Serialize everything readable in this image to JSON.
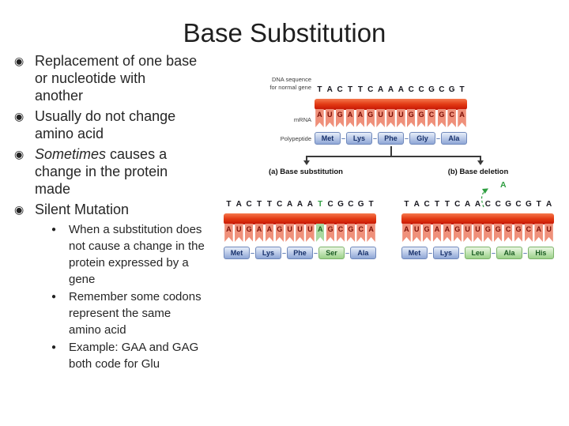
{
  "slide": {
    "title": "Base Substitution"
  },
  "bullet_glyph_level1": "◉",
  "bullet_glyph_level2": "●",
  "bullets": [
    {
      "level": 1,
      "lines": [
        "Replacement of one base",
        "or nucleotide with",
        "another"
      ]
    },
    {
      "level": 1,
      "lines": [
        "Usually do not change",
        "amino acid"
      ]
    },
    {
      "level": 1,
      "lines": [
        [
          {
            "t": "Sometimes",
            "i": true
          },
          {
            "t": " causes a",
            "i": false
          }
        ],
        "change in the protein",
        "made"
      ]
    },
    {
      "level": 1,
      "lines": [
        "Silent Mutation"
      ]
    },
    {
      "level": 2,
      "lines": [
        "When a substitution does",
        "not cause a change in the",
        "protein expressed by a",
        "gene"
      ]
    },
    {
      "level": 2,
      "lines": [
        "Remember some codons",
        "represent the same",
        "amino acid"
      ]
    },
    {
      "level": 2,
      "lines": [
        "Example: GAA and GAG",
        "both code for Glu"
      ]
    }
  ],
  "figure": {
    "connector": "–",
    "normal": {
      "label": [
        "DNA sequence",
        "for normal gene"
      ],
      "mrna_label": "mRNA",
      "polypeptide_label": "Polypeptide",
      "dna": [
        "T",
        "A",
        "C",
        "T",
        "T",
        "C",
        "A",
        "A",
        "A",
        "C",
        "C",
        "G",
        "C",
        "G",
        "T"
      ],
      "mrna": [
        "A",
        "U",
        "G",
        "A",
        "A",
        "G",
        "U",
        "U",
        "U",
        "G",
        "G",
        "C",
        "G",
        "C",
        "A"
      ],
      "polypeptide": [
        {
          "aa": "Met",
          "c": "blue"
        },
        {
          "aa": "Lys",
          "c": "blue"
        },
        {
          "aa": "Phe",
          "c": "blue"
        },
        {
          "aa": "Gly",
          "c": "blue"
        },
        {
          "aa": "Ala",
          "c": "blue"
        }
      ]
    },
    "branch": {
      "left_label": "(a) Base substitution",
      "right_label": "(b) Base deletion"
    },
    "substitution": {
      "dna": [
        "T",
        "A",
        "C",
        "T",
        "T",
        "C",
        "A",
        "A",
        "A",
        {
          "b": "T",
          "g": true
        },
        "C",
        "G",
        "C",
        "G",
        "T"
      ],
      "mrna": [
        "A",
        "U",
        "G",
        "A",
        "A",
        "G",
        "U",
        "U",
        "U",
        {
          "b": "A",
          "g": true
        },
        "G",
        "C",
        "G",
        "C",
        "A"
      ],
      "polypeptide": [
        {
          "aa": "Met",
          "c": "blue"
        },
        {
          "aa": "Lys",
          "c": "blue"
        },
        {
          "aa": "Phe",
          "c": "blue"
        },
        {
          "aa": "Ser",
          "c": "green"
        },
        {
          "aa": "Ala",
          "c": "blue"
        }
      ]
    },
    "deletion": {
      "deleted_base": "A",
      "dna": [
        "T",
        "A",
        "C",
        "T",
        "T",
        "C",
        "A",
        "A",
        "C",
        "C",
        "G",
        "C",
        "G",
        "T",
        "A"
      ],
      "mrna": [
        "A",
        "U",
        "G",
        "A",
        "A",
        "G",
        "U",
        "U",
        "G",
        "G",
        "C",
        "G",
        "C",
        "A",
        "U"
      ],
      "polypeptide": [
        {
          "aa": "Met",
          "c": "blue"
        },
        {
          "aa": "Lys",
          "c": "blue"
        },
        {
          "aa": "Leu",
          "c": "green"
        },
        {
          "aa": "Ala",
          "c": "green"
        },
        {
          "aa": "His",
          "c": "green"
        }
      ]
    }
  },
  "colors": {
    "bar_top": "#f5794d",
    "bar_mid": "#e23a14",
    "bar_bottom": "#c51504",
    "tooth_bg": "#ef907a",
    "tooth_letter": "#7d0f06",
    "tooth_green_bg": "#a8d9a0",
    "tooth_green_letter": "#1b6a22",
    "dna_letter": "#16161e",
    "dna_green": "#2f9e41",
    "aa_blue_top": "#e7eef9",
    "aa_blue_bottom": "#8ea6d6",
    "aa_blue_border": "#7089bb",
    "aa_blue_text": "#17306b",
    "aa_green_top": "#ebf6e2",
    "aa_green_bottom": "#9bd189",
    "aa_green_border": "#7cb36b",
    "aa_green_text": "#1a5c22",
    "connector_color": "#5b79b4",
    "branch_line": "#3a3a3a"
  }
}
